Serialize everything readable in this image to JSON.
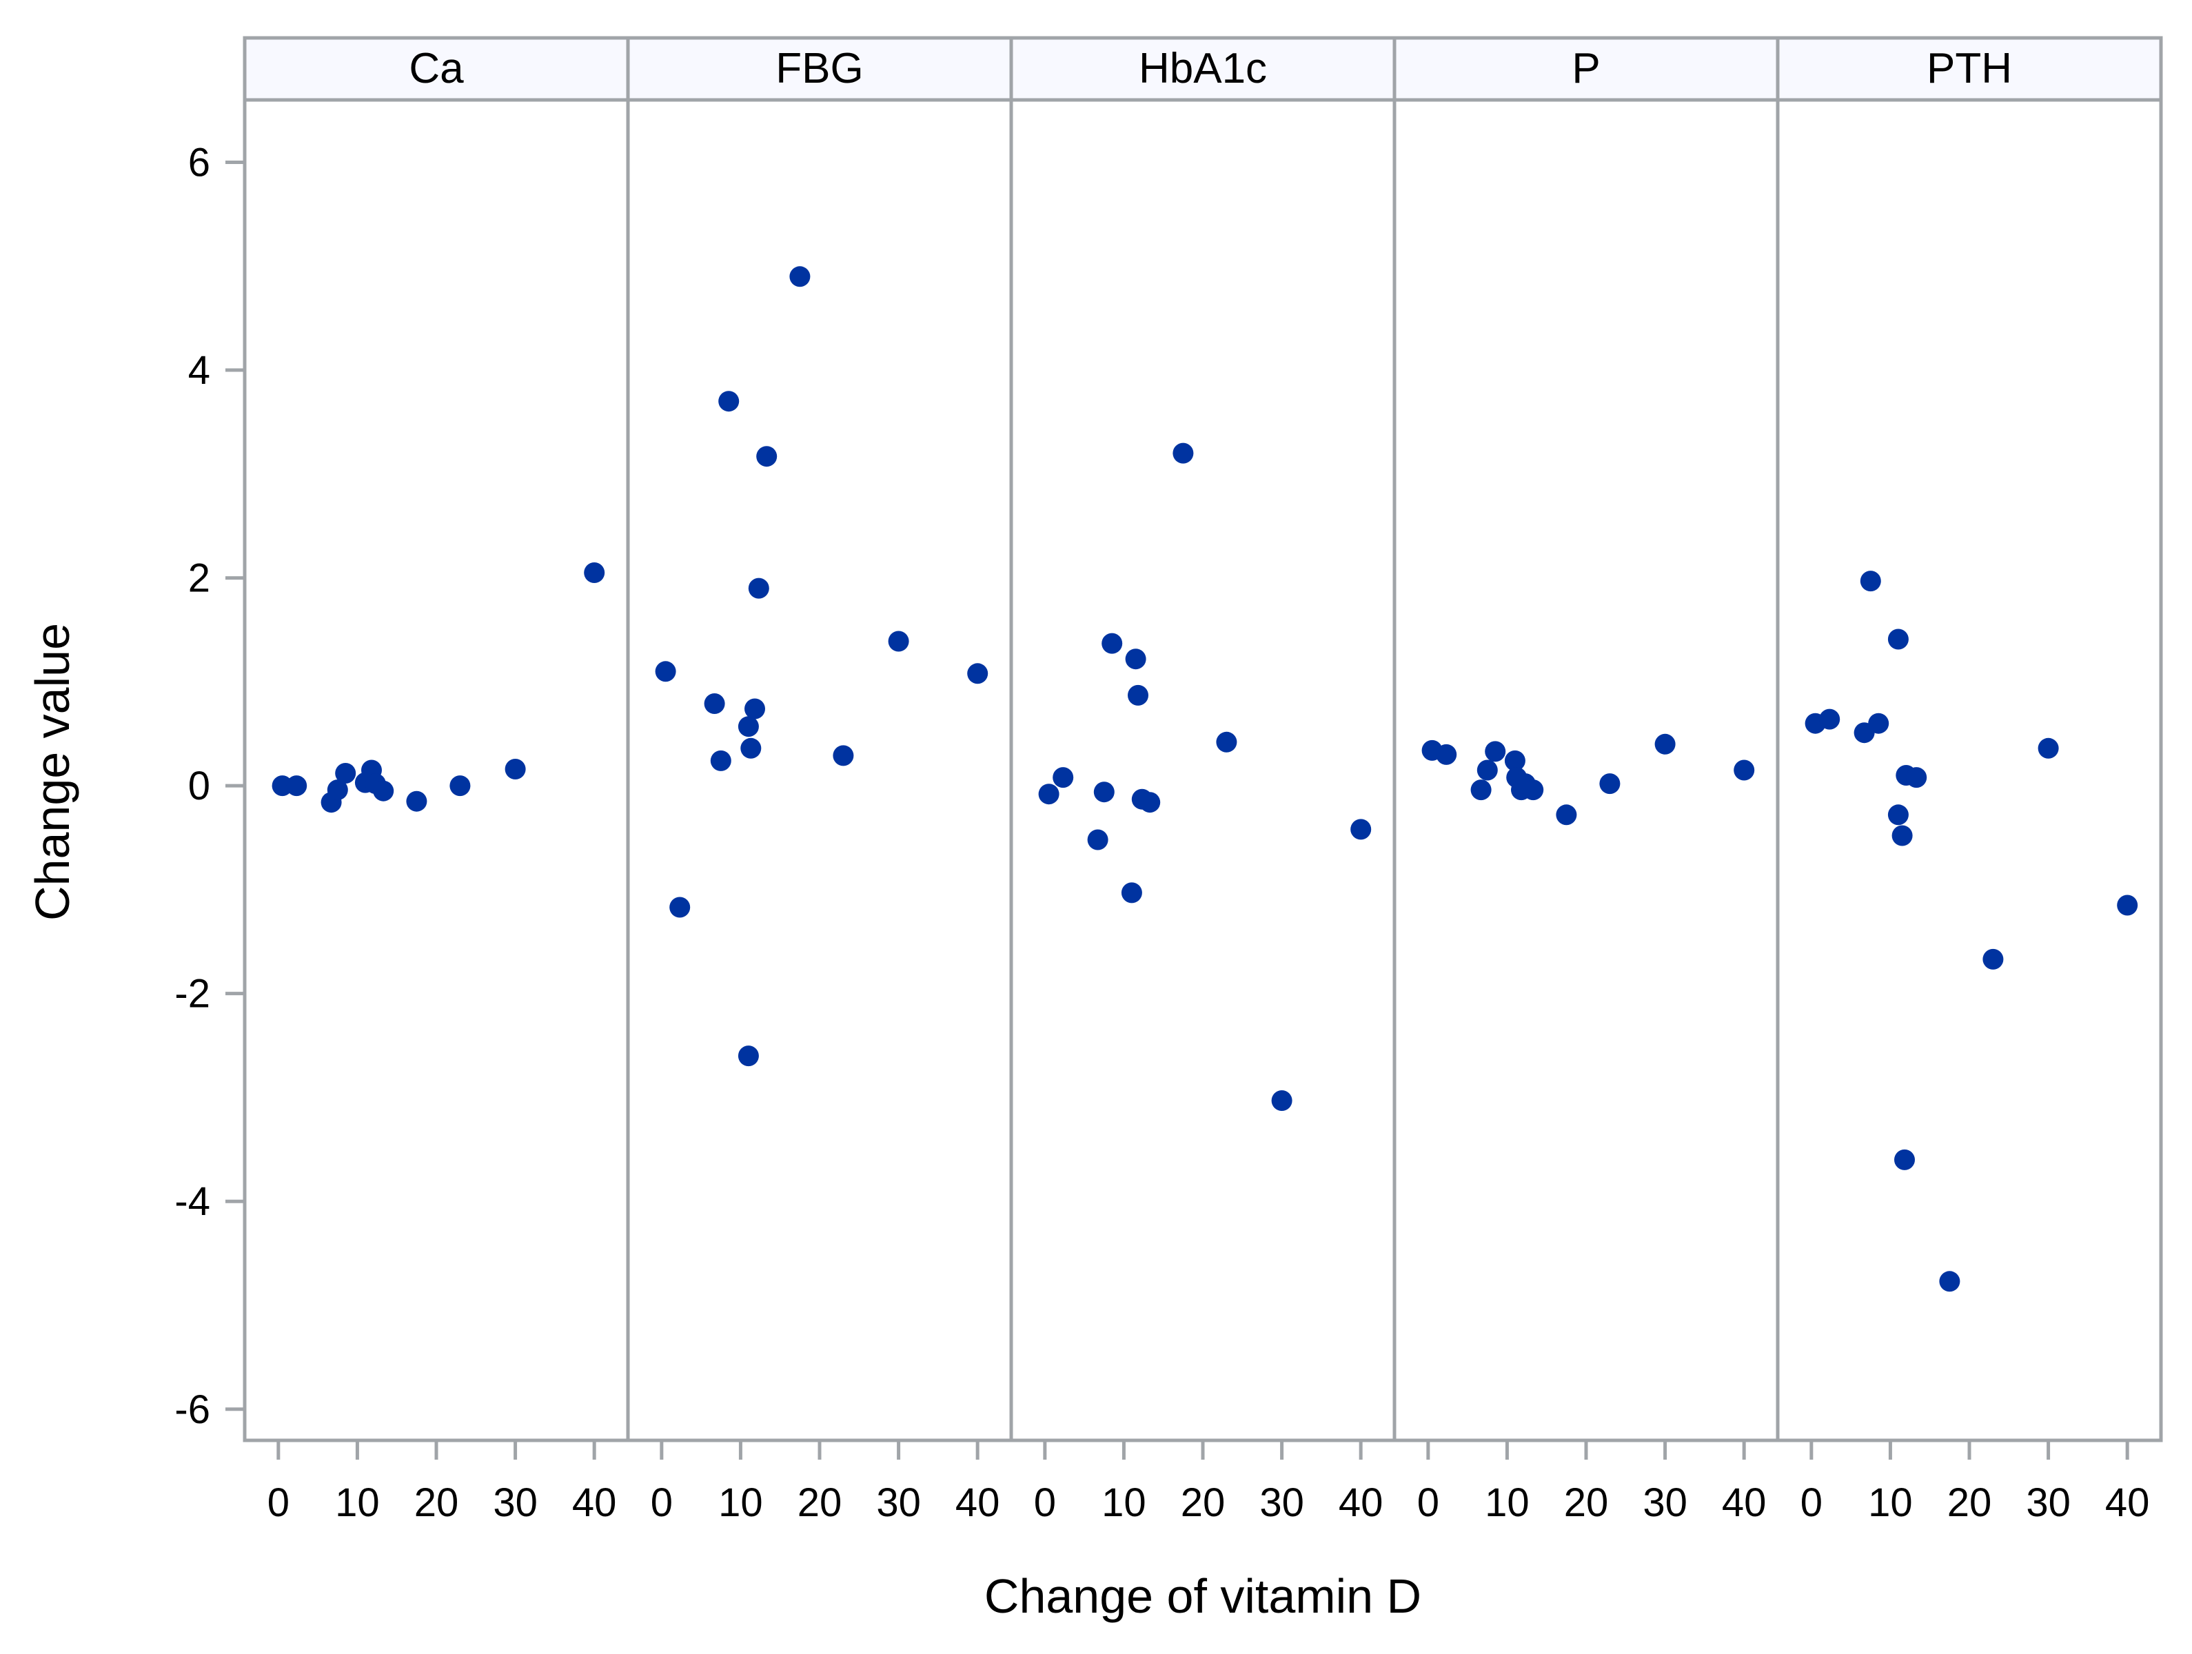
{
  "chart_data": {
    "type": "scatter",
    "xlabel": "Change of vitamin D",
    "ylabel": "Change value",
    "ylim": [
      -6.3,
      6.6
    ],
    "xlim": [
      -4,
      44
    ],
    "yticks": [
      6,
      4,
      2,
      0,
      -2,
      -4,
      -6
    ],
    "xticks": [
      0,
      10,
      20,
      30,
      40
    ],
    "grid": false,
    "marker_color": "#0033a0",
    "strip_color": "#f8f9ff",
    "frame_color": "#a0a4a8",
    "panels": [
      {
        "label": "Ca",
        "points": [
          [
            0.5,
            0.0
          ],
          [
            2.3,
            0.0
          ],
          [
            6.7,
            -0.16
          ],
          [
            7.5,
            -0.04
          ],
          [
            8.5,
            0.12
          ],
          [
            11.0,
            0.03
          ],
          [
            11.8,
            0.15
          ],
          [
            12.3,
            0.02
          ],
          [
            13.3,
            -0.05
          ],
          [
            17.5,
            -0.15
          ],
          [
            23.0,
            0.0
          ],
          [
            30.0,
            0.16
          ],
          [
            40.0,
            2.05
          ]
        ]
      },
      {
        "label": "FBG",
        "points": [
          [
            0.5,
            1.1
          ],
          [
            2.3,
            -1.17
          ],
          [
            6.7,
            0.79
          ],
          [
            7.5,
            0.24
          ],
          [
            8.5,
            3.7
          ],
          [
            11.0,
            -2.6
          ],
          [
            11.0,
            0.57
          ],
          [
            11.3,
            0.36
          ],
          [
            11.8,
            0.74
          ],
          [
            12.3,
            1.9
          ],
          [
            13.3,
            3.17
          ],
          [
            17.5,
            4.9
          ],
          [
            23.0,
            0.29
          ],
          [
            30.0,
            1.39
          ],
          [
            40.0,
            1.08
          ]
        ]
      },
      {
        "label": "HbA1c",
        "points": [
          [
            0.5,
            -0.08
          ],
          [
            2.3,
            0.08
          ],
          [
            6.7,
            -0.52
          ],
          [
            7.5,
            -0.06
          ],
          [
            8.5,
            1.37
          ],
          [
            11.0,
            -1.03
          ],
          [
            11.5,
            1.22
          ],
          [
            11.8,
            0.87
          ],
          [
            12.3,
            -0.13
          ],
          [
            13.3,
            -0.16
          ],
          [
            17.5,
            3.2
          ],
          [
            23.0,
            0.42
          ],
          [
            30.0,
            -3.03
          ],
          [
            40.0,
            -0.42
          ]
        ]
      },
      {
        "label": "P",
        "points": [
          [
            0.5,
            0.34
          ],
          [
            2.3,
            0.3
          ],
          [
            6.7,
            -0.04
          ],
          [
            7.5,
            0.15
          ],
          [
            8.5,
            0.33
          ],
          [
            11.0,
            0.24
          ],
          [
            11.2,
            0.08
          ],
          [
            11.8,
            -0.04
          ],
          [
            12.3,
            0.02
          ],
          [
            13.3,
            -0.04
          ],
          [
            17.5,
            -0.28
          ],
          [
            23.0,
            0.02
          ],
          [
            30.0,
            0.4
          ],
          [
            40.0,
            0.15
          ]
        ]
      },
      {
        "label": "PTH",
        "points": [
          [
            0.5,
            0.6
          ],
          [
            2.3,
            0.64
          ],
          [
            6.7,
            0.51
          ],
          [
            7.5,
            1.97
          ],
          [
            8.5,
            0.6
          ],
          [
            11.0,
            1.41
          ],
          [
            11.0,
            -0.28
          ],
          [
            11.5,
            -0.48
          ],
          [
            11.8,
            -3.6
          ],
          [
            12.0,
            0.1
          ],
          [
            13.3,
            0.08
          ],
          [
            17.5,
            -4.77
          ],
          [
            23.0,
            -1.67
          ],
          [
            30.0,
            0.36
          ],
          [
            40.0,
            -1.15
          ]
        ]
      }
    ]
  }
}
